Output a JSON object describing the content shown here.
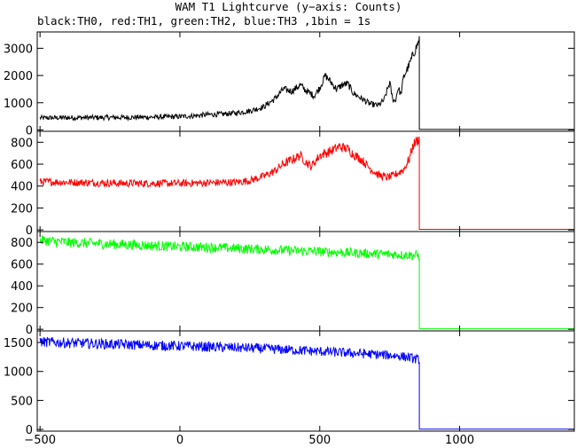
{
  "title": "WAM T1 Lightcurve (y−axis: Counts)",
  "subtitle": "black:TH0, red:TH1, green:TH2, blue:TH3 ,1bin = 1s",
  "chart_data": [
    {
      "type": "line",
      "series": [
        {
          "name": "TH0",
          "color": "#000000",
          "points": [
            [
              -500,
              440
            ],
            [
              -400,
              450
            ],
            [
              -300,
              455
            ],
            [
              -200,
              460
            ],
            [
              -100,
              470
            ],
            [
              0,
              490
            ],
            [
              50,
              520
            ],
            [
              100,
              560
            ],
            [
              150,
              580
            ],
            [
              200,
              620
            ],
            [
              250,
              700
            ],
            [
              300,
              850
            ],
            [
              340,
              1150
            ],
            [
              370,
              1500
            ],
            [
              400,
              1420
            ],
            [
              430,
              1650
            ],
            [
              450,
              1450
            ],
            [
              480,
              1250
            ],
            [
              500,
              1550
            ],
            [
              520,
              2000
            ],
            [
              540,
              1750
            ],
            [
              560,
              1500
            ],
            [
              580,
              1650
            ],
            [
              600,
              1700
            ],
            [
              620,
              1350
            ],
            [
              650,
              1150
            ],
            [
              680,
              950
            ],
            [
              710,
              900
            ],
            [
              730,
              1100
            ],
            [
              750,
              1750
            ],
            [
              760,
              1150
            ],
            [
              770,
              1050
            ],
            [
              780,
              1550
            ],
            [
              790,
              1300
            ],
            [
              800,
              1950
            ],
            [
              820,
              2400
            ],
            [
              835,
              2800
            ],
            [
              850,
              3150
            ],
            [
              856,
              3350
            ]
          ]
        }
      ],
      "xlim": [
        -510,
        1410
      ],
      "ylim": [
        -50,
        3600
      ],
      "yticks": [
        0,
        1000,
        2000,
        3000
      ],
      "drop_to": 20
    },
    {
      "type": "line",
      "series": [
        {
          "name": "TH1",
          "color": "#ff0000",
          "points": [
            [
              -500,
              440
            ],
            [
              -400,
              435
            ],
            [
              -300,
              430
            ],
            [
              -200,
              425
            ],
            [
              -100,
              425
            ],
            [
              0,
              425
            ],
            [
              100,
              430
            ],
            [
              200,
              435
            ],
            [
              250,
              450
            ],
            [
              300,
              490
            ],
            [
              340,
              540
            ],
            [
              370,
              600
            ],
            [
              400,
              640
            ],
            [
              430,
              680
            ],
            [
              450,
              620
            ],
            [
              470,
              580
            ],
            [
              500,
              680
            ],
            [
              540,
              720
            ],
            [
              570,
              760
            ],
            [
              600,
              740
            ],
            [
              620,
              690
            ],
            [
              650,
              640
            ],
            [
              680,
              560
            ],
            [
              710,
              500
            ],
            [
              740,
              480
            ],
            [
              760,
              490
            ],
            [
              780,
              520
            ],
            [
              800,
              550
            ],
            [
              820,
              650
            ],
            [
              835,
              780
            ],
            [
              850,
              820
            ],
            [
              856,
              840
            ]
          ]
        }
      ],
      "xlim": [
        -510,
        1410
      ],
      "ylim": [
        -15,
        900
      ],
      "yticks": [
        0,
        200,
        400,
        600,
        800
      ],
      "drop_to": 5
    },
    {
      "type": "line",
      "series": [
        {
          "name": "TH2",
          "color": "#00ff00",
          "points": [
            [
              -500,
              820
            ],
            [
              -400,
              800
            ],
            [
              -300,
              790
            ],
            [
              -200,
              780
            ],
            [
              -100,
              770
            ],
            [
              0,
              760
            ],
            [
              100,
              755
            ],
            [
              200,
              745
            ],
            [
              300,
              735
            ],
            [
              400,
              725
            ],
            [
              500,
              715
            ],
            [
              600,
              705
            ],
            [
              700,
              695
            ],
            [
              800,
              685
            ],
            [
              856,
              680
            ]
          ]
        }
      ],
      "xlim": [
        -510,
        1410
      ],
      "ylim": [
        -15,
        900
      ],
      "yticks": [
        0,
        200,
        400,
        600,
        800
      ],
      "drop_to": 5
    },
    {
      "type": "line",
      "series": [
        {
          "name": "TH3",
          "color": "#0000ff",
          "points": [
            [
              -500,
              1510
            ],
            [
              -400,
              1495
            ],
            [
              -300,
              1480
            ],
            [
              -200,
              1465
            ],
            [
              -100,
              1450
            ],
            [
              0,
              1440
            ],
            [
              100,
              1425
            ],
            [
              200,
              1410
            ],
            [
              300,
              1395
            ],
            [
              400,
              1370
            ],
            [
              500,
              1345
            ],
            [
              600,
              1320
            ],
            [
              700,
              1295
            ],
            [
              780,
              1270
            ],
            [
              820,
              1240
            ],
            [
              856,
              1200
            ]
          ]
        }
      ],
      "xlim": [
        -510,
        1410
      ],
      "ylim": [
        -30,
        1700
      ],
      "yticks": [
        0,
        500,
        1000,
        1500
      ],
      "drop_to": 5,
      "xticks": [
        -500,
        0,
        500,
        1000
      ]
    }
  ]
}
